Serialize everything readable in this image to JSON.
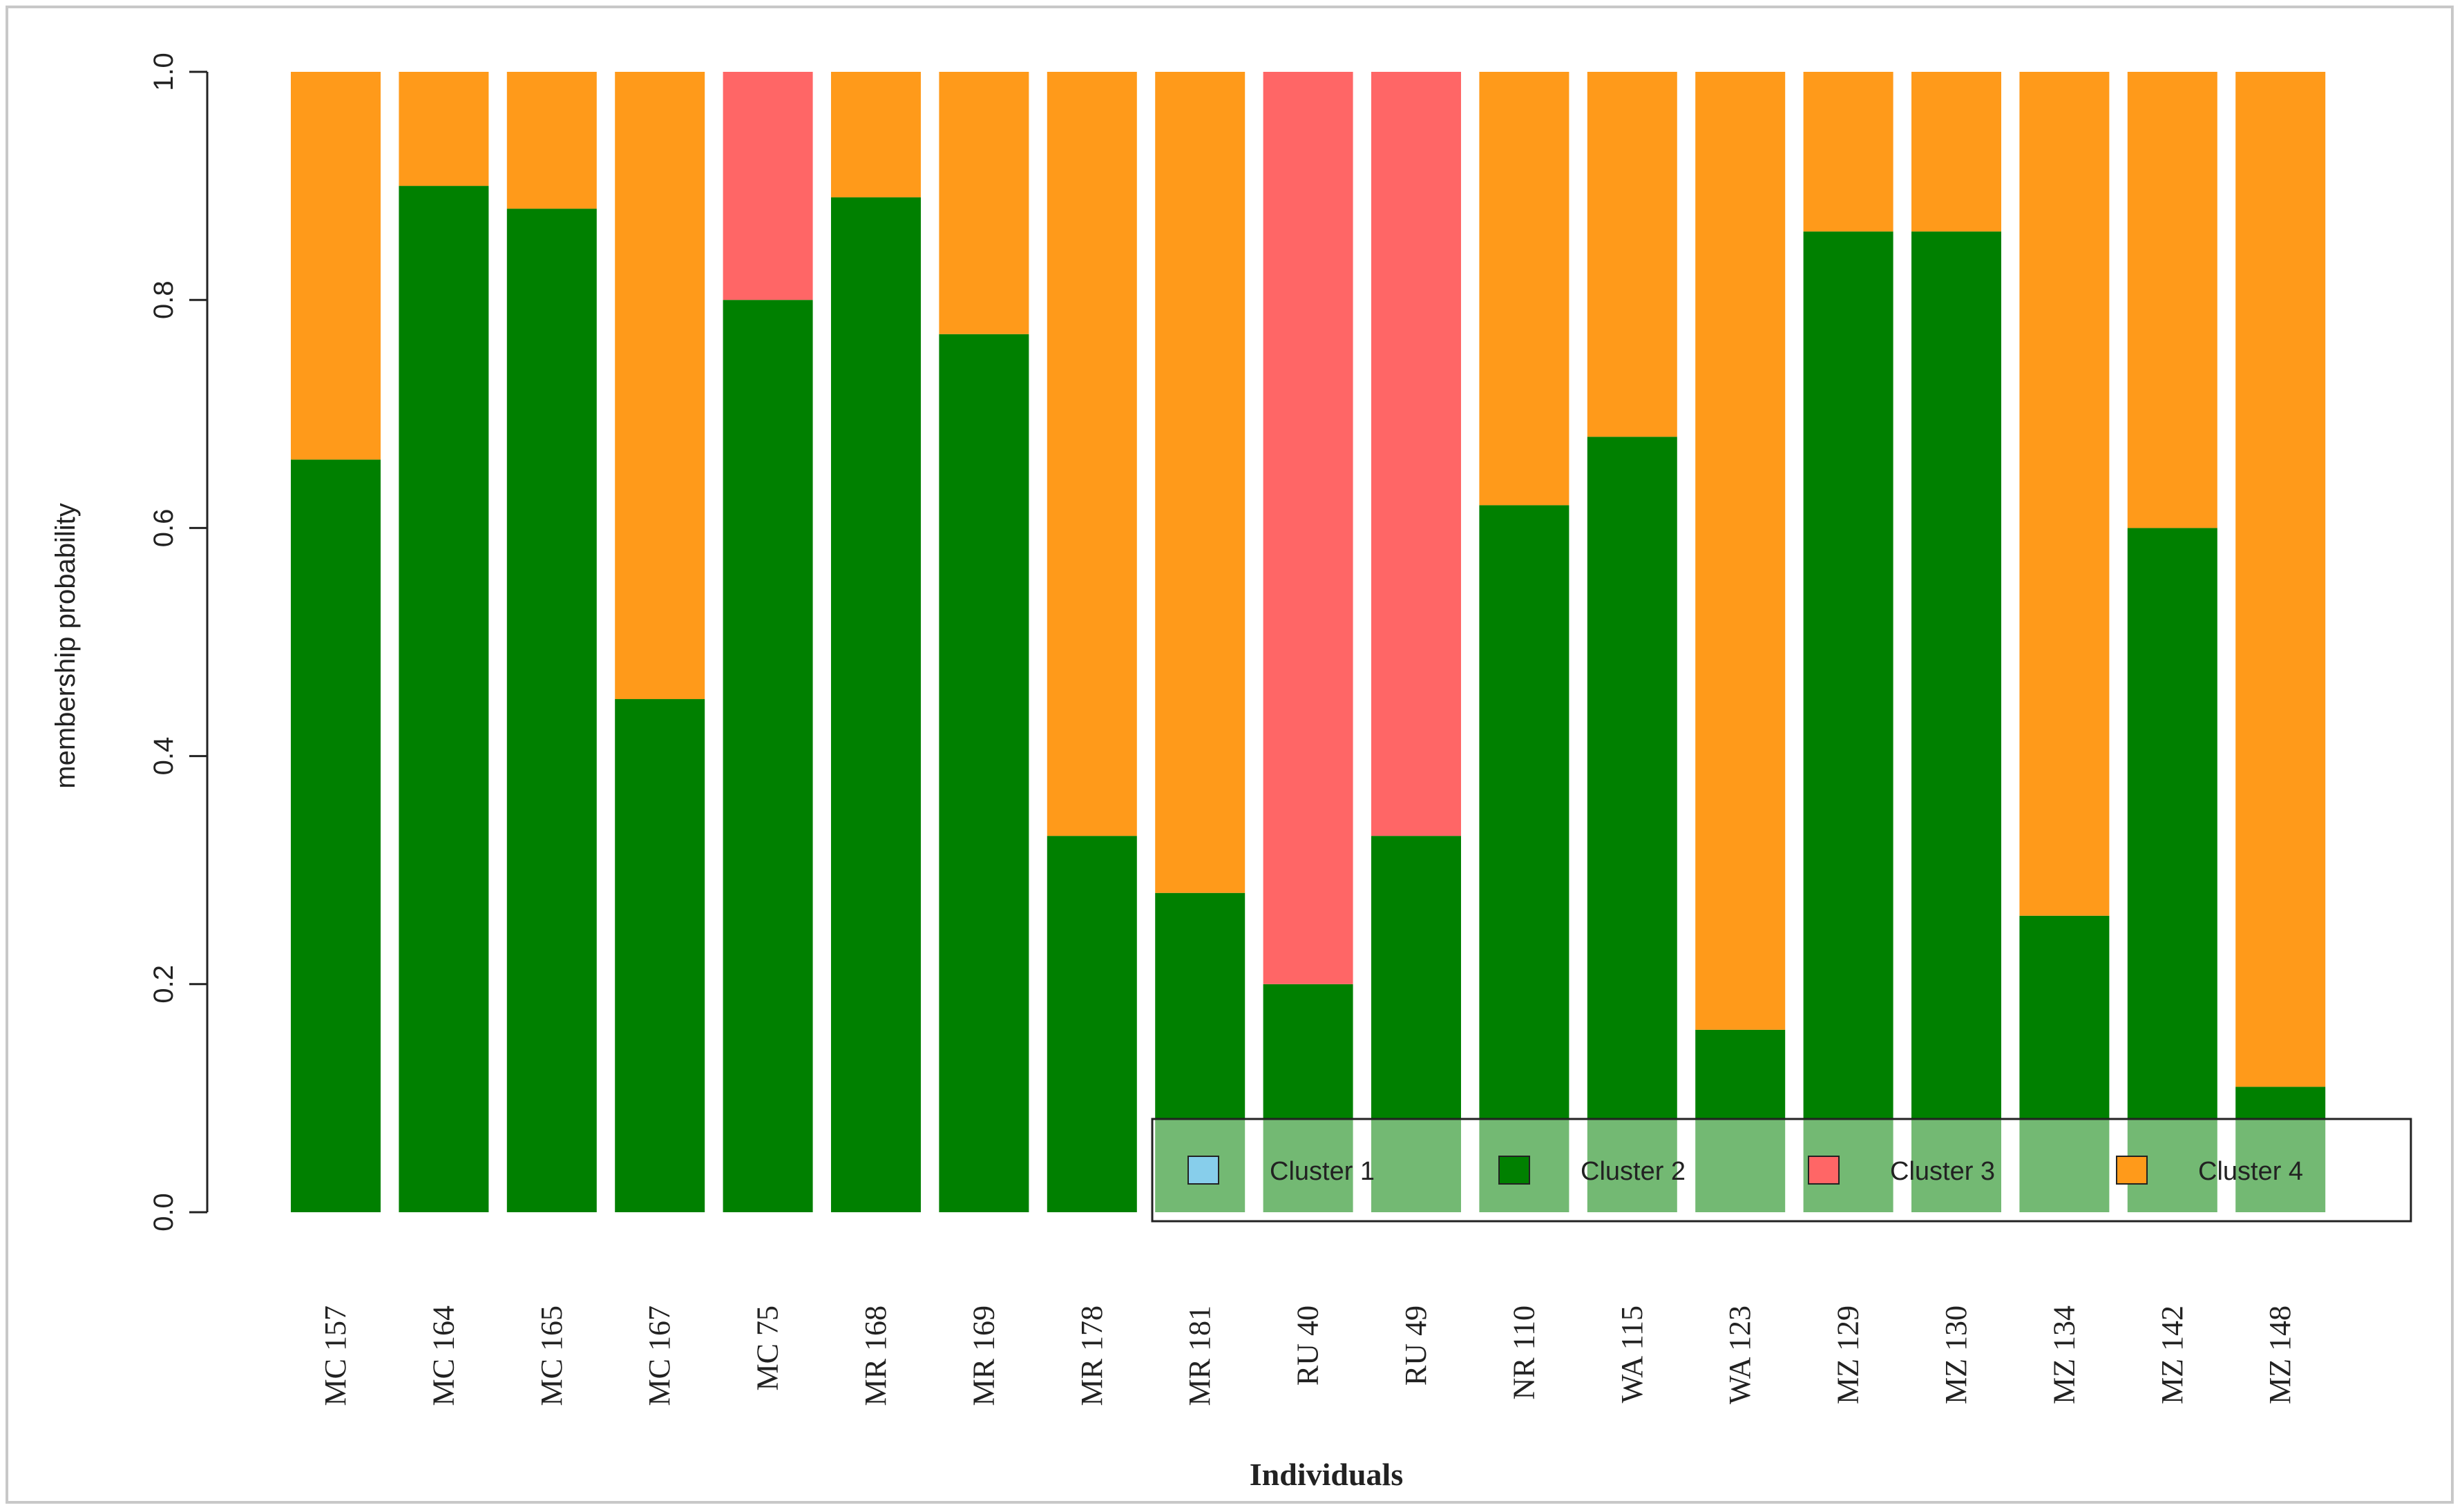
{
  "chart_data": {
    "type": "bar",
    "stacked": true,
    "xlabel": "Individuals",
    "ylabel": "membership probability",
    "ylim": [
      0,
      1
    ],
    "yticks": [
      "0.0",
      "0.2",
      "0.4",
      "0.6",
      "0.8",
      "1.0"
    ],
    "categories": [
      "MC 157",
      "MC 164",
      "MC 165",
      "MC 167",
      "MC 75",
      "MR 168",
      "MR 169",
      "MR 178",
      "MR 181",
      "RU 40",
      "RU 49",
      "NR 110",
      "WA 115",
      "WA 123",
      "MZ 129",
      "MZ 130",
      "MZ 134",
      "MZ 142",
      "MZ 148"
    ],
    "series": [
      {
        "name": "Cluster 1",
        "color": "#87ceeb",
        "values": [
          0,
          0,
          0,
          0,
          0,
          0,
          0,
          0,
          0,
          0,
          0,
          0,
          0,
          0,
          0,
          0,
          0,
          0,
          0
        ]
      },
      {
        "name": "Cluster 2",
        "color": "#008000",
        "values": [
          0.66,
          0.9,
          0.88,
          0.45,
          0.8,
          0.89,
          0.77,
          0.33,
          0.28,
          0.2,
          0.33,
          0.62,
          0.68,
          0.16,
          0.86,
          0.86,
          0.26,
          0.6,
          0.11
        ]
      },
      {
        "name": "Cluster 3",
        "color": "#ff6666",
        "values": [
          0,
          0,
          0,
          0,
          0.2,
          0,
          0,
          0,
          0,
          0.8,
          0.67,
          0,
          0,
          0,
          0,
          0,
          0,
          0,
          0
        ]
      },
      {
        "name": "Cluster 4",
        "color": "#ff9a1a",
        "values": [
          0.34,
          0.1,
          0.12,
          0.55,
          0,
          0.11,
          0.23,
          0.67,
          0.72,
          0,
          0,
          0.38,
          0.32,
          0.84,
          0.14,
          0.14,
          0.74,
          0.4,
          0.89
        ]
      }
    ],
    "grid": false,
    "legend_position": "bottom-right"
  }
}
